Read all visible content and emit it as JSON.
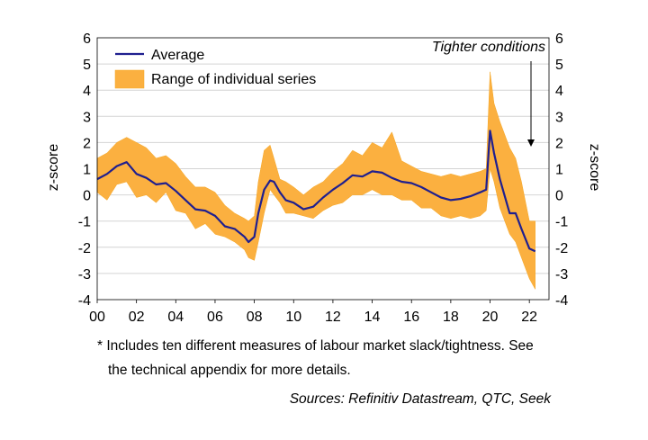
{
  "chart_data": {
    "type": "area",
    "ylabel_left": "z-score",
    "ylabel_right": "z-score",
    "ylim": [
      -4,
      6
    ],
    "yticks": [
      "6",
      "5",
      "4",
      "3",
      "2",
      "1",
      "0",
      "-1",
      "-2",
      "-3",
      "-4"
    ],
    "xlim": [
      2000,
      2023
    ],
    "xtick_values": [
      2000,
      2002,
      2004,
      2006,
      2008,
      2010,
      2012,
      2014,
      2016,
      2018,
      2020,
      2022
    ],
    "xticks": [
      "00",
      "02",
      "04",
      "06",
      "08",
      "10",
      "12",
      "14",
      "16",
      "18",
      "20",
      "22"
    ],
    "legend": {
      "position": "top-left",
      "items": [
        "Average",
        "Range of individual series"
      ]
    },
    "annotation": "Tighter conditions",
    "grid": "horizontal",
    "colors": {
      "average": "#1f1f8f",
      "range": "#fbb040"
    },
    "series": [
      {
        "name": "Average",
        "x": [
          2000.0,
          2000.5,
          2001.0,
          2001.5,
          2002.0,
          2002.5,
          2003.0,
          2003.5,
          2004.0,
          2004.5,
          2005.0,
          2005.5,
          2006.0,
          2006.5,
          2007.0,
          2007.5,
          2007.7,
          2008.0,
          2008.2,
          2008.5,
          2008.8,
          2009.0,
          2009.3,
          2009.6,
          2010.0,
          2010.5,
          2011.0,
          2011.5,
          2012.0,
          2012.5,
          2013.0,
          2013.5,
          2014.0,
          2014.5,
          2015.0,
          2015.5,
          2016.0,
          2016.5,
          2017.0,
          2017.5,
          2018.0,
          2018.5,
          2019.0,
          2019.5,
          2019.8,
          2020.0,
          2020.2,
          2020.5,
          2021.0,
          2021.3,
          2021.6,
          2022.0,
          2022.3
        ],
        "y": [
          0.6,
          0.8,
          1.1,
          1.25,
          0.8,
          0.65,
          0.4,
          0.45,
          0.15,
          -0.2,
          -0.55,
          -0.6,
          -0.8,
          -1.2,
          -1.3,
          -1.6,
          -1.8,
          -1.6,
          -0.7,
          0.2,
          0.55,
          0.5,
          0.1,
          -0.2,
          -0.3,
          -0.55,
          -0.45,
          -0.1,
          0.2,
          0.45,
          0.75,
          0.7,
          0.9,
          0.85,
          0.65,
          0.5,
          0.45,
          0.3,
          0.1,
          -0.1,
          -0.2,
          -0.15,
          -0.05,
          0.1,
          0.2,
          2.45,
          1.6,
          0.6,
          -0.7,
          -0.7,
          -1.3,
          -2.05,
          -2.15
        ]
      },
      {
        "name": "Range of individual series",
        "x": [
          2000.0,
          2000.5,
          2001.0,
          2001.5,
          2002.0,
          2002.5,
          2003.0,
          2003.5,
          2004.0,
          2004.5,
          2005.0,
          2005.5,
          2006.0,
          2006.5,
          2007.0,
          2007.5,
          2007.7,
          2008.0,
          2008.2,
          2008.5,
          2008.8,
          2009.0,
          2009.3,
          2009.6,
          2010.0,
          2010.5,
          2011.0,
          2011.5,
          2012.0,
          2012.5,
          2013.0,
          2013.5,
          2014.0,
          2014.5,
          2015.0,
          2015.5,
          2016.0,
          2016.5,
          2017.0,
          2017.5,
          2018.0,
          2018.5,
          2019.0,
          2019.5,
          2019.8,
          2020.0,
          2020.2,
          2020.5,
          2021.0,
          2021.3,
          2021.6,
          2022.0,
          2022.3
        ],
        "low": [
          0.1,
          -0.2,
          0.4,
          0.5,
          -0.1,
          0.0,
          -0.3,
          0.1,
          -0.6,
          -0.7,
          -1.3,
          -1.1,
          -1.5,
          -1.6,
          -1.8,
          -2.1,
          -2.4,
          -2.5,
          -1.8,
          -0.7,
          0.2,
          0.0,
          -0.3,
          -0.7,
          -0.7,
          -0.8,
          -0.9,
          -0.6,
          -0.4,
          -0.3,
          0.0,
          0.0,
          0.2,
          0.0,
          0.0,
          -0.2,
          -0.2,
          -0.5,
          -0.5,
          -0.8,
          -0.9,
          -0.8,
          -0.9,
          -0.8,
          -0.6,
          1.0,
          0.5,
          -0.5,
          -1.5,
          -1.8,
          -2.4,
          -3.2,
          -3.6
        ],
        "high": [
          1.4,
          1.6,
          2.0,
          2.2,
          2.0,
          1.8,
          1.4,
          1.5,
          1.2,
          0.7,
          0.3,
          0.3,
          0.1,
          -0.4,
          -0.7,
          -0.9,
          -1.0,
          -0.8,
          0.5,
          1.7,
          1.9,
          1.4,
          0.6,
          0.5,
          0.3,
          0.0,
          0.3,
          0.5,
          0.9,
          1.2,
          1.7,
          1.5,
          2.0,
          1.8,
          2.4,
          1.3,
          1.1,
          0.9,
          0.8,
          0.7,
          0.8,
          0.7,
          0.8,
          0.9,
          1.0,
          4.7,
          3.5,
          2.8,
          1.8,
          1.4,
          0.5,
          -1.0,
          -1.0
        ]
      }
    ]
  },
  "footnote": {
    "line1": "* Includes ten different measures of labour market slack/tightness. See",
    "line2": "the technical appendix for more details."
  },
  "source": "Sources: Refinitiv Datastream, QTC, Seek"
}
